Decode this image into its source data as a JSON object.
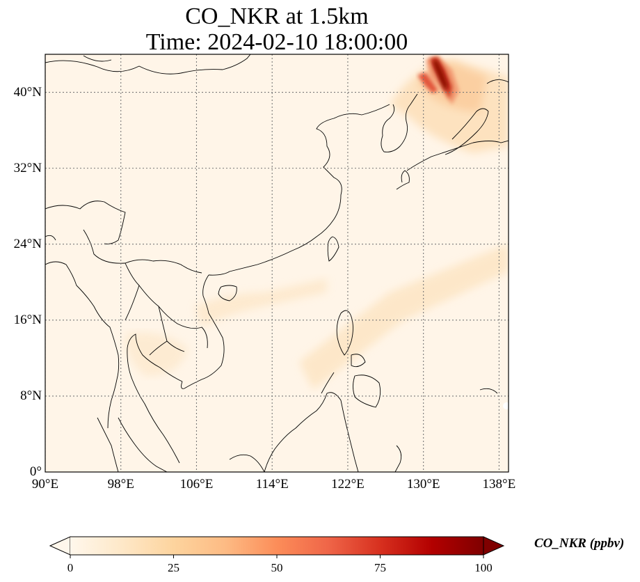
{
  "title_line1": "CO_NKR at 1.5km",
  "title_line2": "Time: 2024-02-10 18:00:00",
  "map": {
    "lon_range": [
      90,
      139
    ],
    "lat_range": [
      0,
      44
    ],
    "lat_ticks": [
      {
        "value": 0,
        "label": "0°"
      },
      {
        "value": 8,
        "label": "8°N"
      },
      {
        "value": 16,
        "label": "16°N"
      },
      {
        "value": 24,
        "label": "24°N"
      },
      {
        "value": 32,
        "label": "32°N"
      },
      {
        "value": 40,
        "label": "40°N"
      }
    ],
    "lon_ticks": [
      {
        "value": 90,
        "label": "90°E"
      },
      {
        "value": 98,
        "label": "98°E"
      },
      {
        "value": 106,
        "label": "106°E"
      },
      {
        "value": 114,
        "label": "114°E"
      },
      {
        "value": 122,
        "label": "122°E"
      },
      {
        "value": 130,
        "label": "130°E"
      },
      {
        "value": 138,
        "label": "138°E"
      }
    ],
    "gridlines": true,
    "colormap": "OrRd",
    "plume_source": "North Korea"
  },
  "colorbar": {
    "label": "CO_NKR (ppbv)",
    "min": 0,
    "max": 100,
    "extend": "both",
    "ticks": [
      {
        "value": 0,
        "label": "0"
      },
      {
        "value": 25,
        "label": "25"
      },
      {
        "value": 50,
        "label": "50"
      },
      {
        "value": 75,
        "label": "75"
      },
      {
        "value": 100,
        "label": "100"
      }
    ],
    "colors": [
      "#fff7ec",
      "#fee8c8",
      "#fdd49e",
      "#fdbb84",
      "#fc8d59",
      "#ef6548",
      "#d7301f",
      "#b30000",
      "#7f0000"
    ]
  }
}
